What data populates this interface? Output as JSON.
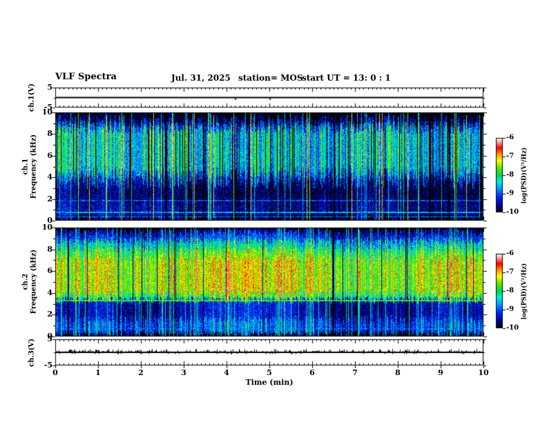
{
  "header": {
    "title": "VLF Spectra",
    "date": "Jul. 31, 2025",
    "station": "station= MOS",
    "start_ut": "start UT =  13: 0 : 1"
  },
  "xaxis": {
    "label": "Time (min)",
    "min": 0,
    "max": 10,
    "major_ticks": [
      0,
      1,
      2,
      3,
      4,
      5,
      6,
      7,
      8,
      9,
      10
    ],
    "minor_step": 0.1
  },
  "colormap": {
    "zlim": [
      -10,
      -6
    ],
    "stops": [
      [
        0.0,
        "#000000"
      ],
      [
        0.1,
        "#00008e"
      ],
      [
        0.22,
        "#0028ff"
      ],
      [
        0.34,
        "#00aaff"
      ],
      [
        0.42,
        "#00eedd"
      ],
      [
        0.5,
        "#00d855"
      ],
      [
        0.6,
        "#55e800"
      ],
      [
        0.7,
        "#ffff00"
      ],
      [
        0.79,
        "#ff9100"
      ],
      [
        0.87,
        "#ff0000"
      ],
      [
        0.94,
        "#ff8f9a"
      ],
      [
        1.0,
        "#ffffff"
      ]
    ]
  },
  "colorbars": [
    {
      "label": "log(PSD)(V²/Hz)",
      "ticks": [
        -6,
        -7,
        -8,
        -9,
        -10
      ]
    },
    {
      "label": "log(PSD)(V²/Hz)",
      "ticks": [
        -6,
        -7,
        -8,
        -9,
        -10
      ]
    }
  ],
  "chart_data": [
    {
      "type": "line",
      "id": "ch1_waveform",
      "ylabel": "ch.1(V)",
      "ylim": [
        -5,
        5
      ],
      "yticks": [
        5,
        -5
      ],
      "xlim": [
        0,
        10
      ],
      "series": [
        {
          "name": "ch.1 voltage",
          "description": "flat baseline at 0 V for the full 10 min",
          "baseline_value": 0,
          "spikes": [
            {
              "t": 4.2,
              "amp": -0.5
            },
            {
              "t": 5.0,
              "amp": -0.4
            }
          ]
        }
      ]
    },
    {
      "type": "heatmap",
      "id": "ch1_spectrogram",
      "ylabel_line1": "ch.1",
      "ylabel_line2": "Frequency (kHz)",
      "ylim": [
        0,
        10
      ],
      "yticks_labeled": [
        0,
        2,
        4,
        6,
        8,
        10
      ],
      "xlim": [
        0,
        10
      ],
      "zlim": [
        -10,
        -6
      ],
      "bands": [
        {
          "f_range": [
            9.2,
            10.0
          ],
          "mean_log_psd": -9.9
        },
        {
          "f_range": [
            8.6,
            9.2
          ],
          "mean_log_psd": -9.1
        },
        {
          "f_range": [
            4.4,
            8.6
          ],
          "mean_log_psd": -8.2
        },
        {
          "f_range": [
            3.5,
            4.4
          ],
          "mean_log_psd": -8.9
        },
        {
          "f_range": [
            1.8,
            3.5
          ],
          "mean_log_psd": -9.55
        },
        {
          "f_range": [
            0.15,
            1.8
          ],
          "mean_log_psd": -9.35
        },
        {
          "f_range": [
            0.0,
            0.15
          ],
          "mean_log_psd": -10
        }
      ],
      "hlines": [
        {
          "f": 1.85,
          "log_psd": -9.0
        },
        {
          "f": 0.75,
          "log_psd": -8.5
        },
        {
          "f": 0.35,
          "log_psd": -8.8
        }
      ],
      "texture": {
        "gap_prob": 0.1,
        "streak_prob": 0.05,
        "streak_min": 1.3,
        "streak_max": 1.9,
        "col_spread": 1.25,
        "noise": 0.52,
        "jitter": 1.2,
        "seed": 11
      }
    },
    {
      "type": "heatmap",
      "id": "ch2_spectrogram",
      "ylabel_line1": "ch.2",
      "ylabel_line2": "Frequency (kHz)",
      "ylim": [
        0,
        10
      ],
      "yticks_labeled": [
        0,
        2,
        4,
        6,
        8,
        10
      ],
      "xlim": [
        0,
        10
      ],
      "zlim": [
        -10,
        -6
      ],
      "bands": [
        {
          "f_range": [
            9.5,
            10.0
          ],
          "mean_log_psd": -9.8
        },
        {
          "f_range": [
            8.8,
            9.5
          ],
          "mean_log_psd": -9.15
        },
        {
          "f_range": [
            8.0,
            8.8
          ],
          "mean_log_psd": -8.35
        },
        {
          "f_range": [
            7.2,
            8.0
          ],
          "mean_log_psd": -7.75
        },
        {
          "f_range": [
            3.9,
            7.2
          ],
          "mean_log_psd": -7.35
        },
        {
          "f_range": [
            3.35,
            3.9
          ],
          "mean_log_psd": -7.9
        },
        {
          "f_range": [
            1.6,
            3.35
          ],
          "mean_log_psd": -9.4
        },
        {
          "f_range": [
            0.25,
            1.6
          ],
          "mean_log_psd": -8.95
        },
        {
          "f_range": [
            0.0,
            0.25
          ],
          "mean_log_psd": -10
        }
      ],
      "hlines": [
        {
          "f": 3.3,
          "log_psd": -7.9
        },
        {
          "f": 1.05,
          "log_psd": -9.1
        },
        {
          "f": 0.7,
          "log_psd": -9.0
        }
      ],
      "texture": {
        "gap_prob": 0.06,
        "streak_prob": 0.07,
        "streak_min": 0.55,
        "streak_max": 0.95,
        "col_spread": 0.9,
        "noise": 0.45,
        "jitter": 0.7,
        "seed": 77
      }
    },
    {
      "type": "line",
      "id": "ch3_waveform",
      "ylabel": "ch.3(V)",
      "ylim": [
        -5,
        5
      ],
      "yticks": [
        5,
        -5
      ],
      "xlim": [
        0,
        10
      ],
      "series": [
        {
          "name": "ch.3 voltage",
          "description": "flat baseline at 0 V with small noise spikes",
          "baseline_value": 0,
          "noise_amp_v": 0.45
        }
      ]
    }
  ]
}
